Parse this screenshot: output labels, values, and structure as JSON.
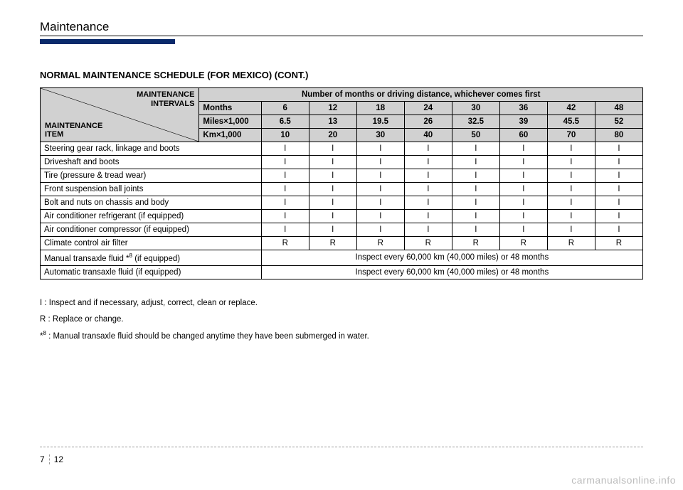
{
  "header": {
    "section": "Maintenance",
    "accent_color": "#0a2a6b"
  },
  "title": "NORMAL MAINTENANCE SCHEDULE (FOR MEXICO) (CONT.)",
  "table": {
    "diag_top_line1": "MAINTENANCE",
    "diag_top_line2": "INTERVALS",
    "diag_bot_line1": "MAINTENANCE",
    "diag_bot_line2": "ITEM",
    "top_header": "Number of months or driving distance, whichever comes first",
    "interval_rows": [
      {
        "label": "Months",
        "vals": [
          "6",
          "12",
          "18",
          "24",
          "30",
          "36",
          "42",
          "48"
        ]
      },
      {
        "label": "Miles×1,000",
        "vals": [
          "6.5",
          "13",
          "19.5",
          "26",
          "32.5",
          "39",
          "45.5",
          "52"
        ]
      },
      {
        "label": "Km×1,000",
        "vals": [
          "10",
          "20",
          "30",
          "40",
          "50",
          "60",
          "70",
          "80"
        ]
      }
    ],
    "items": [
      {
        "label": "Steering gear rack, linkage and boots",
        "vals": [
          "I",
          "I",
          "I",
          "I",
          "I",
          "I",
          "I",
          "I"
        ]
      },
      {
        "label": "Driveshaft and boots",
        "vals": [
          "I",
          "I",
          "I",
          "I",
          "I",
          "I",
          "I",
          "I"
        ]
      },
      {
        "label": "Tire (pressure & tread wear)",
        "vals": [
          "I",
          "I",
          "I",
          "I",
          "I",
          "I",
          "I",
          "I"
        ]
      },
      {
        "label": "Front suspension ball joints",
        "vals": [
          "I",
          "I",
          "I",
          "I",
          "I",
          "I",
          "I",
          "I"
        ]
      },
      {
        "label": "Bolt and nuts on chassis and body",
        "vals": [
          "I",
          "I",
          "I",
          "I",
          "I",
          "I",
          "I",
          "I"
        ]
      },
      {
        "label": "Air conditioner refrigerant (if equipped)",
        "vals": [
          "I",
          "I",
          "I",
          "I",
          "I",
          "I",
          "I",
          "I"
        ]
      },
      {
        "label": "Air conditioner compressor (if equipped)",
        "vals": [
          "I",
          "I",
          "I",
          "I",
          "I",
          "I",
          "I",
          "I"
        ]
      },
      {
        "label": "Climate control air filter",
        "vals": [
          "R",
          "R",
          "R",
          "R",
          "R",
          "R",
          "R",
          "R"
        ]
      }
    ],
    "span_items": [
      {
        "label_html": "Manual transaxle fluid *<span class=\"sup\">8</span> (if equipped)",
        "text": "Inspect every 60,000 km (40,000 miles) or 48 months"
      },
      {
        "label_html": "Automatic transaxle fluid (if equipped)",
        "text": "Inspect every 60,000 km (40,000 miles) or 48 months"
      }
    ]
  },
  "legend": {
    "line_i": "I   : Inspect and if necessary, adjust, correct, clean or replace.",
    "line_r": "R : Replace or change.",
    "line_note_prefix": "*",
    "line_note_sup": "8",
    "line_note_rest": " : Manual transaxle fluid should be changed anytime they have been submerged in water."
  },
  "footer": {
    "section_num": "7",
    "page_num": "12",
    "watermark": "carmanualsonline.info"
  },
  "col_widths": {
    "item_col": "300",
    "val_col": "68"
  }
}
